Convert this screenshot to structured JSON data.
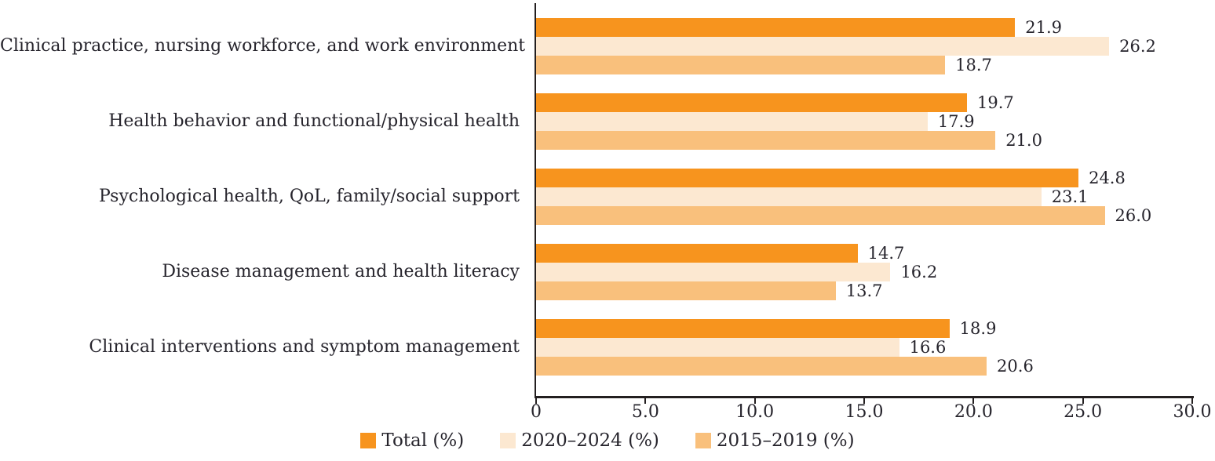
{
  "figure": {
    "text_color": "#26242C",
    "axis_color": "#231F20",
    "background": "#FFFFFF"
  },
  "chart_data": {
    "type": "bar",
    "orientation": "horizontal",
    "title": "",
    "xlabel": "",
    "ylabel": "",
    "grid": false,
    "legend_position": "bottom",
    "value_labels": true,
    "xlim": [
      0,
      30
    ],
    "categories": [
      "Clinical practice, nursing workforce, and work environment",
      "Health behavior and functional/physical health",
      "Psychological health, QoL, family/social support",
      "Disease management and health literacy",
      "Clinical interventions and symptom management"
    ],
    "series": [
      {
        "name": "Total (%)",
        "color": "#F7941E",
        "values": [
          21.9,
          19.7,
          24.8,
          14.7,
          18.9
        ]
      },
      {
        "name": "2020–2024 (%)",
        "color": "#FCE8D1",
        "values": [
          26.2,
          17.9,
          23.1,
          16.2,
          16.6
        ]
      },
      {
        "name": "2015–2019 (%)",
        "color": "#F9C07C",
        "values": [
          18.7,
          21.0,
          26.0,
          13.7,
          20.6
        ]
      }
    ],
    "x_ticks": [
      {
        "value": 0,
        "label": "0"
      },
      {
        "value": 5,
        "label": "5.0"
      },
      {
        "value": 10,
        "label": "10.0"
      },
      {
        "value": 15,
        "label": "15.0"
      },
      {
        "value": 20,
        "label": "20.0"
      },
      {
        "value": 25,
        "label": "25.0"
      },
      {
        "value": 30,
        "label": "30.0"
      }
    ]
  }
}
